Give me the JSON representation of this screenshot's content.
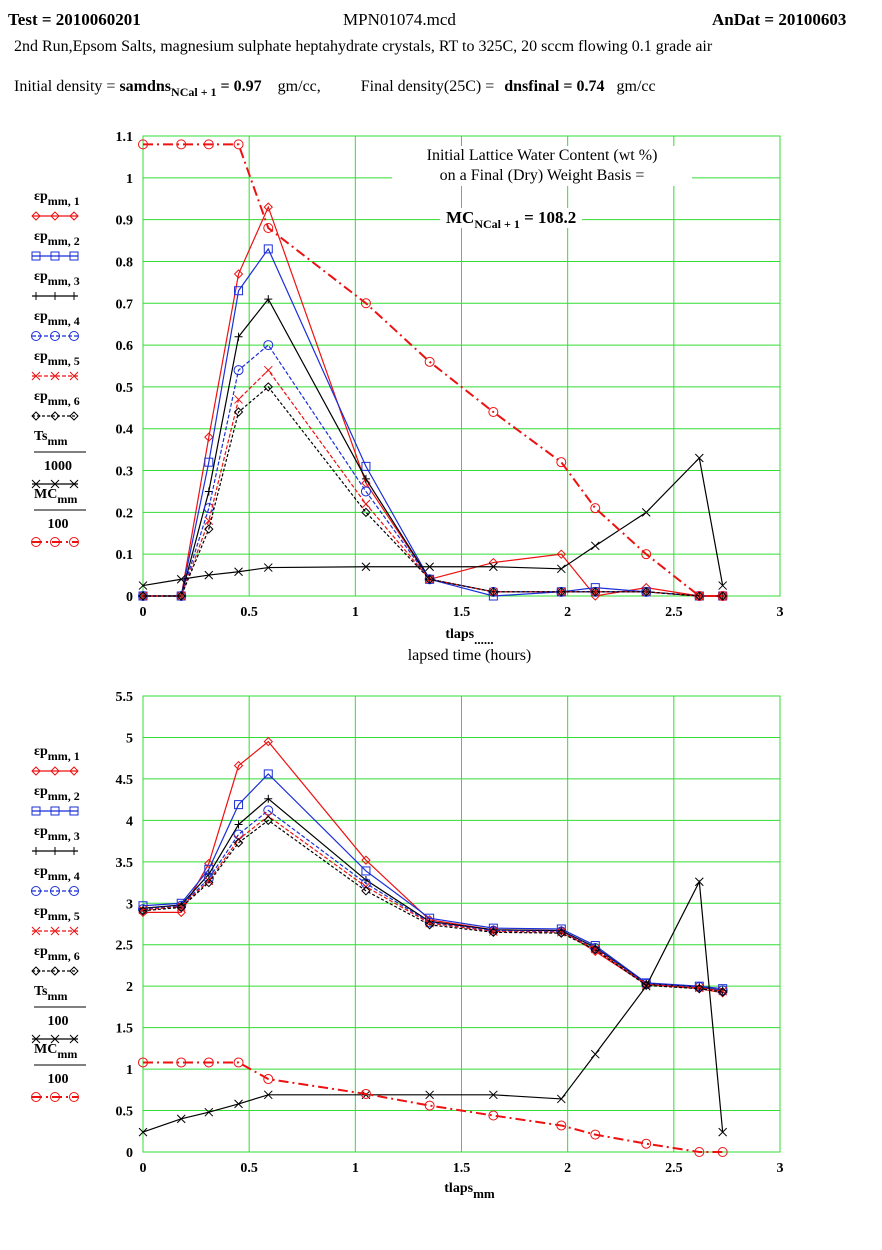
{
  "header": {
    "test": "Test = 2010060201",
    "filename": "MPN01074.mcd",
    "andat": "AnDat = 20100603",
    "description": "2nd Run,Epsom Salts, magnesium sulphate heptahydrate crystals, RT to 325C, 20 sccm flowing 0.1 grade air",
    "initial_density_label": "Initial density =",
    "initial_density_var": "samdns",
    "initial_density_sub": "NCal + 1",
    "initial_density_value": " = 0.97",
    "initial_density_unit": "gm/cc,",
    "final_density_label": "Final density(25C) =",
    "final_density_var": "dnsfinal",
    "final_density_value": " = 0.74",
    "final_density_unit": "gm/cc"
  },
  "annotation": {
    "line1": "Initial Lattice Water Content (wt %)",
    "line2": "on a Final (Dry) Weight Basis =",
    "mc_var": "MC",
    "mc_sub": "NCal + 1",
    "mc_value": " = 108.2"
  },
  "colors": {
    "grid": "#33dd33",
    "red": "#ee1111",
    "blue": "#1a2fd8",
    "black": "#000000"
  },
  "chart_data": [
    {
      "type": "line",
      "xlabel": "tlaps",
      "xlabel_sub": "......",
      "xlabel2": "lapsed time (hours)",
      "xlim": [
        0,
        3
      ],
      "ylim": [
        0,
        1.1
      ],
      "xticks": [
        "0",
        "0.5",
        "1",
        "1.5",
        "2",
        "2.5",
        "3"
      ],
      "yticks": [
        "0",
        "0.1",
        "0.2",
        "0.3",
        "0.4",
        "0.5",
        "0.6",
        "0.7",
        "0.8",
        "0.9",
        "1",
        "1.1"
      ],
      "grid": true,
      "legend": [
        {
          "label": "εp",
          "sub": "mm, 1"
        },
        {
          "label": "εp",
          "sub": "mm, 2"
        },
        {
          "label": "εp",
          "sub": "mm, 3"
        },
        {
          "label": "εp",
          "sub": "mm, 4"
        },
        {
          "label": "εp",
          "sub": "mm, 5"
        },
        {
          "label": "εp",
          "sub": "mm, 6"
        },
        {
          "label": "Ts",
          "sub": "mm",
          "den": "1000"
        },
        {
          "label": "MC",
          "sub": "mm",
          "den": "100"
        }
      ],
      "series": [
        {
          "color": "#ee1111",
          "marker": "diamond",
          "dash": "",
          "x": [
            0,
            0.18,
            0.31,
            0.45,
            0.59,
            1.05,
            1.35,
            1.65,
            1.97,
            2.13,
            2.37,
            2.62,
            2.73
          ],
          "y": [
            0,
            0,
            0.38,
            0.77,
            0.93,
            0.27,
            0.04,
            0.08,
            0.1,
            0,
            0.02,
            0,
            0
          ]
        },
        {
          "color": "#1a2fd8",
          "marker": "square",
          "dash": "",
          "x": [
            0,
            0.18,
            0.31,
            0.45,
            0.59,
            1.05,
            1.35,
            1.65,
            1.97,
            2.13,
            2.37,
            2.62,
            2.73
          ],
          "y": [
            0,
            0,
            0.32,
            0.73,
            0.83,
            0.31,
            0.04,
            0,
            0.01,
            0.02,
            0.01,
            0,
            0
          ]
        },
        {
          "color": "#000000",
          "marker": "plus",
          "dash": "",
          "x": [
            0,
            0.18,
            0.31,
            0.45,
            0.59,
            1.05,
            1.35,
            1.65,
            1.97,
            2.13,
            2.37,
            2.62,
            2.73
          ],
          "y": [
            0,
            0,
            0.25,
            0.62,
            0.71,
            0.28,
            0.04,
            0.01,
            0.01,
            0.01,
            0.01,
            0,
            0
          ]
        },
        {
          "color": "#1a2fd8",
          "marker": "circle",
          "dash": "4,2",
          "x": [
            0,
            0.18,
            0.31,
            0.45,
            0.59,
            1.05,
            1.35,
            1.65,
            1.97,
            2.13,
            2.37,
            2.62,
            2.73
          ],
          "y": [
            0,
            0,
            0.21,
            0.54,
            0.6,
            0.25,
            0.04,
            0.01,
            0.01,
            0.01,
            0.01,
            0,
            0
          ]
        },
        {
          "color": "#ee1111",
          "marker": "x",
          "dash": "4,2",
          "x": [
            0,
            0.18,
            0.31,
            0.45,
            0.59,
            1.05,
            1.35,
            1.65,
            1.97,
            2.13,
            2.37,
            2.62,
            2.73
          ],
          "y": [
            0,
            0,
            0.18,
            0.47,
            0.54,
            0.22,
            0.04,
            0.01,
            0.01,
            0.01,
            0.01,
            0,
            0
          ]
        },
        {
          "color": "#000000",
          "marker": "diamond",
          "dash": "3,2",
          "x": [
            0,
            0.18,
            0.31,
            0.45,
            0.59,
            1.05,
            1.35,
            1.65,
            1.97,
            2.13,
            2.37,
            2.62,
            2.73
          ],
          "y": [
            0,
            0,
            0.16,
            0.44,
            0.5,
            0.2,
            0.04,
            0.01,
            0.01,
            0.01,
            0.01,
            0,
            0
          ]
        },
        {
          "color": "#000000",
          "marker": "x",
          "dash": "",
          "x": [
            0,
            0.18,
            0.31,
            0.45,
            0.59,
            1.05,
            1.35,
            1.65,
            1.97,
            2.13,
            2.37,
            2.62,
            2.73
          ],
          "y": [
            0.025,
            0.04,
            0.05,
            0.058,
            0.068,
            0.07,
            0.07,
            0.07,
            0.065,
            0.12,
            0.2,
            0.33,
            0.025
          ]
        },
        {
          "color": "#ee1111",
          "marker": "circle",
          "dash": "10,4,2,4",
          "width": 2,
          "x": [
            0,
            0.18,
            0.31,
            0.45,
            0.59,
            1.05,
            1.35,
            1.65,
            1.97,
            2.13,
            2.37,
            2.62,
            2.73
          ],
          "y": [
            1.08,
            1.08,
            1.08,
            1.08,
            0.88,
            0.7,
            0.56,
            0.44,
            0.32,
            0.21,
            0.1,
            0,
            0
          ]
        }
      ]
    },
    {
      "type": "line",
      "xlabel": "tlaps",
      "xlabel_sub": "mm",
      "xlim": [
        0,
        3
      ],
      "ylim": [
        0,
        5.5
      ],
      "xticks": [
        "0",
        "0.5",
        "1",
        "1.5",
        "2",
        "2.5",
        "3"
      ],
      "yticks": [
        "0",
        "0.5",
        "1",
        "1.5",
        "2",
        "2.5",
        "3",
        "3.5",
        "4",
        "4.5",
        "5",
        "5.5"
      ],
      "grid": true,
      "legend": [
        {
          "label": "εp",
          "sub": "mm, 1"
        },
        {
          "label": "εp",
          "sub": "mm, 2"
        },
        {
          "label": "εp",
          "sub": "mm, 3"
        },
        {
          "label": "εp",
          "sub": "mm, 4"
        },
        {
          "label": "εp",
          "sub": "mm, 5"
        },
        {
          "label": "εp",
          "sub": "mm, 6"
        },
        {
          "label": "Ts",
          "sub": "mm",
          "den": "100"
        },
        {
          "label": "MC",
          "sub": "mm",
          "den": "100"
        }
      ],
      "series": [
        {
          "color": "#ee1111",
          "marker": "diamond",
          "dash": "",
          "x": [
            0,
            0.18,
            0.31,
            0.45,
            0.59,
            1.05,
            1.35,
            1.65,
            1.97,
            2.13,
            2.37,
            2.62,
            2.73
          ],
          "y": [
            2.89,
            2.89,
            3.48,
            4.66,
            4.95,
            3.52,
            2.8,
            2.68,
            2.67,
            2.42,
            2.02,
            1.97,
            1.92
          ]
        },
        {
          "color": "#1a2fd8",
          "marker": "square",
          "dash": "",
          "x": [
            0,
            0.18,
            0.31,
            0.45,
            0.59,
            1.05,
            1.35,
            1.65,
            1.97,
            2.13,
            2.37,
            2.62,
            2.73
          ],
          "y": [
            2.97,
            3,
            3.41,
            4.19,
            4.56,
            3.39,
            2.82,
            2.7,
            2.69,
            2.49,
            2.04,
            2,
            1.97
          ]
        },
        {
          "color": "#000000",
          "marker": "plus",
          "dash": "",
          "x": [
            0,
            0.18,
            0.31,
            0.45,
            0.59,
            1.05,
            1.35,
            1.65,
            1.97,
            2.13,
            2.37,
            2.62,
            2.73
          ],
          "y": [
            2.94,
            2.98,
            3.35,
            3.95,
            4.26,
            3.28,
            2.78,
            2.68,
            2.67,
            2.47,
            2.03,
            1.99,
            1.95
          ]
        },
        {
          "color": "#1a2fd8",
          "marker": "circle",
          "dash": "4,2",
          "x": [
            0,
            0.18,
            0.31,
            0.45,
            0.59,
            1.05,
            1.35,
            1.65,
            1.97,
            2.13,
            2.37,
            2.62,
            2.73
          ],
          "y": [
            2.93,
            2.97,
            3.3,
            3.83,
            4.12,
            3.24,
            2.77,
            2.67,
            2.66,
            2.46,
            2.03,
            1.99,
            1.95
          ]
        },
        {
          "color": "#ee1111",
          "marker": "x",
          "dash": "4,2",
          "x": [
            0,
            0.18,
            0.31,
            0.45,
            0.59,
            1.05,
            1.35,
            1.65,
            1.97,
            2.13,
            2.37,
            2.62,
            2.73
          ],
          "y": [
            2.92,
            2.96,
            3.27,
            3.77,
            4.05,
            3.2,
            2.76,
            2.66,
            2.65,
            2.45,
            2.02,
            1.98,
            1.94
          ]
        },
        {
          "color": "#000000",
          "marker": "diamond",
          "dash": "3,2",
          "x": [
            0,
            0.18,
            0.31,
            0.45,
            0.59,
            1.05,
            1.35,
            1.65,
            1.97,
            2.13,
            2.37,
            2.62,
            2.73
          ],
          "y": [
            2.91,
            2.95,
            3.25,
            3.73,
            4,
            3.15,
            2.74,
            2.65,
            2.64,
            2.44,
            2.01,
            1.97,
            1.93
          ]
        },
        {
          "color": "#000000",
          "marker": "x",
          "dash": "",
          "x": [
            0,
            0.18,
            0.31,
            0.45,
            0.59,
            1.05,
            1.35,
            1.65,
            1.97,
            2.13,
            2.37,
            2.62,
            2.73
          ],
          "y": [
            0.24,
            0.4,
            0.48,
            0.58,
            0.69,
            0.69,
            0.69,
            0.69,
            0.64,
            1.18,
            2.0,
            3.26,
            0.24
          ]
        },
        {
          "color": "#ee1111",
          "marker": "circle",
          "dash": "10,4,2,4",
          "width": 2,
          "x": [
            0,
            0.18,
            0.31,
            0.45,
            0.59,
            1.05,
            1.35,
            1.65,
            1.97,
            2.13,
            2.37,
            2.62,
            2.73
          ],
          "y": [
            1.08,
            1.08,
            1.08,
            1.08,
            0.88,
            0.7,
            0.56,
            0.44,
            0.32,
            0.21,
            0.1,
            0,
            0
          ]
        }
      ]
    }
  ]
}
